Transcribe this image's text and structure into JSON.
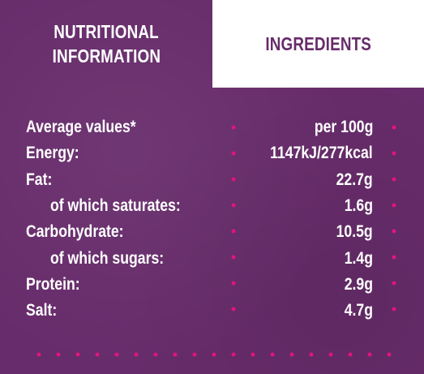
{
  "tabs": [
    {
      "lines": [
        "NUTRITIONAL",
        "INFORMATION"
      ]
    },
    {
      "lines": [
        "INGREDIENTS"
      ]
    }
  ],
  "table": {
    "header": [
      "Average values*",
      "per 100g"
    ],
    "rows": [
      {
        "label": "Energy:",
        "value": "1147kJ/277kcal"
      },
      {
        "label": "Fat:",
        "value": "22.7g",
        "sub": [
          {
            "label": "of which saturates:",
            "value": "1.6g"
          }
        ]
      },
      {
        "label": "Carbohydrate:",
        "value": "10.5g",
        "sub": [
          {
            "label": "of which sugars:",
            "value": "1.4g"
          }
        ]
      },
      {
        "label": "Protein:",
        "value": "2.9g"
      },
      {
        "label": "Salt:",
        "value": "4.7g"
      }
    ]
  }
}
